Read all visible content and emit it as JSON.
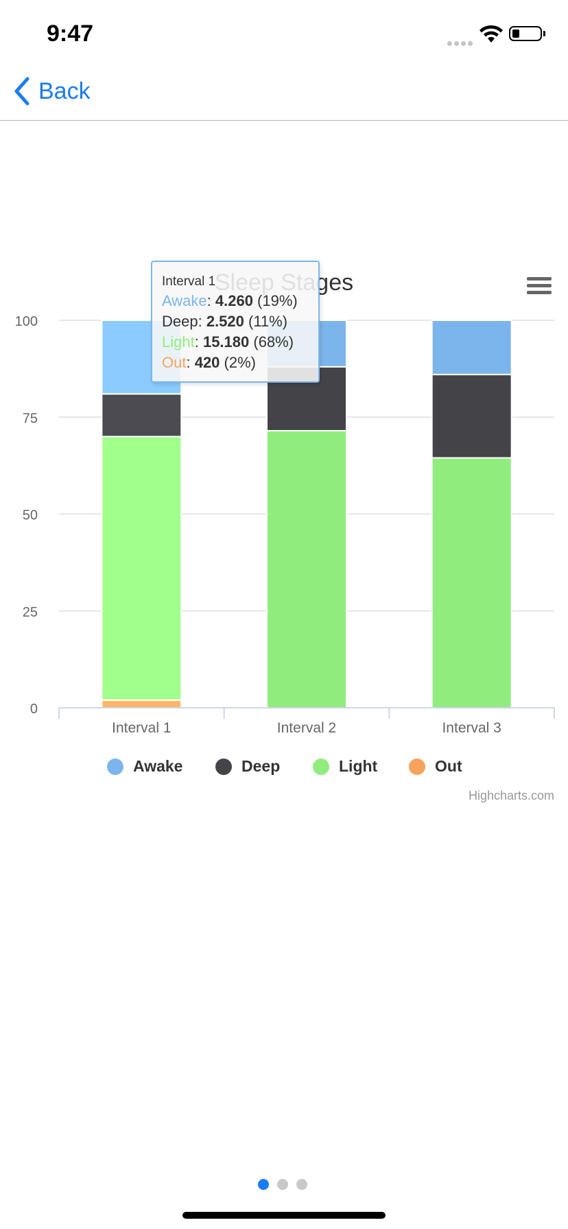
{
  "status_bar": {
    "time": "9:47"
  },
  "nav": {
    "back_label": "Back",
    "icons": [
      "chevron-left-icon"
    ]
  },
  "colors": {
    "accent": "#1a7cf0",
    "awake": "#7cb5ec",
    "deep": "#434348",
    "light": "#90ed7d",
    "out": "#f7a35c"
  },
  "chart_data": {
    "type": "bar",
    "stacking": "percent",
    "title": "Sleep Stages",
    "xlabel": "",
    "ylabel": "",
    "categories": [
      "Interval 1",
      "Interval 2",
      "Interval 3"
    ],
    "ylim": [
      0,
      100
    ],
    "yticks": [
      "0",
      "25",
      "50",
      "75",
      "100"
    ],
    "grid": true,
    "legend_position": "bottom",
    "series": [
      {
        "name": "Awake",
        "color": "#7cb5ec",
        "values": [
          19,
          12,
          14
        ]
      },
      {
        "name": "Deep",
        "color": "#434348",
        "values": [
          11,
          16.5,
          21.5
        ]
      },
      {
        "name": "Light",
        "color": "#90ed7d",
        "values": [
          68,
          71.5,
          64.5
        ]
      },
      {
        "name": "Out",
        "color": "#f7a35c",
        "values": [
          2,
          0,
          0
        ]
      }
    ],
    "hovered_index": 0,
    "credit": "Highcharts.com"
  },
  "tooltip": {
    "title": "Interval 1",
    "rows": [
      {
        "name": "Awake",
        "value": "4.260",
        "pct": "(19%)",
        "color": "#7cb5ec"
      },
      {
        "name": "Deep",
        "value": "2.520",
        "pct": "(11%)",
        "color": "#333333"
      },
      {
        "name": "Light",
        "value": "15.180",
        "pct": "(68%)",
        "color": "#90ed7d"
      },
      {
        "name": "Out",
        "value": "420",
        "pct": "(2%)",
        "color": "#f7a35c"
      }
    ]
  },
  "pager": {
    "count": 3,
    "active": 0
  }
}
